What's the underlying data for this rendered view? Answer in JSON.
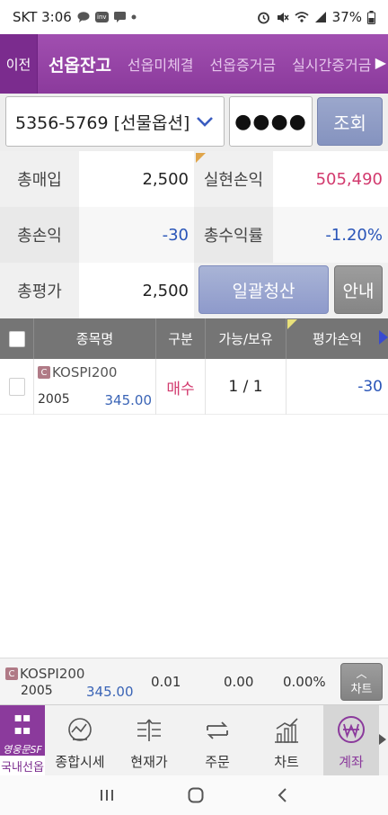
{
  "status_bar": {
    "carrier_time": "SKT 3:06",
    "battery": "37%",
    "notif_icons": [
      "chat-bubble-icon",
      "inv-icon",
      "message-icon",
      "dot-icon"
    ],
    "system_icons": [
      "alarm-icon",
      "mute-icon",
      "wifi-icon",
      "signal-icon",
      "battery-icon"
    ]
  },
  "tabbar": {
    "back_label": "이전",
    "tabs": [
      {
        "label": "선옵잔고",
        "active": true
      },
      {
        "label": "선옵미체결",
        "active": false
      },
      {
        "label": "선옵증거금",
        "active": false
      },
      {
        "label": "실시간증거금",
        "active": false
      }
    ]
  },
  "account": {
    "value": "5356-5769 [선물옵션]",
    "password_mask": "●●●●",
    "query_label": "조회"
  },
  "summary": {
    "total_buy_label": "총매입",
    "total_buy": "2,500",
    "realized_pl_label": "실현손익",
    "realized_pl": "505,490",
    "total_pl_label": "총손익",
    "total_pl": "-30",
    "total_return_label": "총수익률",
    "total_return": "-1.20%",
    "total_eval_label": "총평가",
    "total_eval": "2,500",
    "bulk_clear_label": "일괄청산",
    "info_label": "안내"
  },
  "table": {
    "headers": [
      "종목명",
      "구분",
      "가능/보유",
      "평가손익"
    ],
    "rows": [
      {
        "badge": "C",
        "name": "KOSPI200",
        "year": "2005",
        "strike": "345.00",
        "kind": "매수",
        "qty": "1 / 1",
        "pl": "-30"
      }
    ]
  },
  "quote": {
    "badge": "C",
    "name": "KOSPI200",
    "year": "2005",
    "strike": "345.00",
    "v1": "0.01",
    "v2": "0.00",
    "v3": "0.00%",
    "chart_label": "차트"
  },
  "menu": {
    "items": [
      {
        "label": "국내선옵",
        "sub": "영웅문SF"
      },
      {
        "label": "종합시세"
      },
      {
        "label": "현재가"
      },
      {
        "label": "주문"
      },
      {
        "label": "차트"
      },
      {
        "label": "계좌"
      }
    ]
  },
  "colors": {
    "brand_purple": "#8b3a9c",
    "up_red": "#d23a6e",
    "down_blue": "#2a55b8"
  }
}
